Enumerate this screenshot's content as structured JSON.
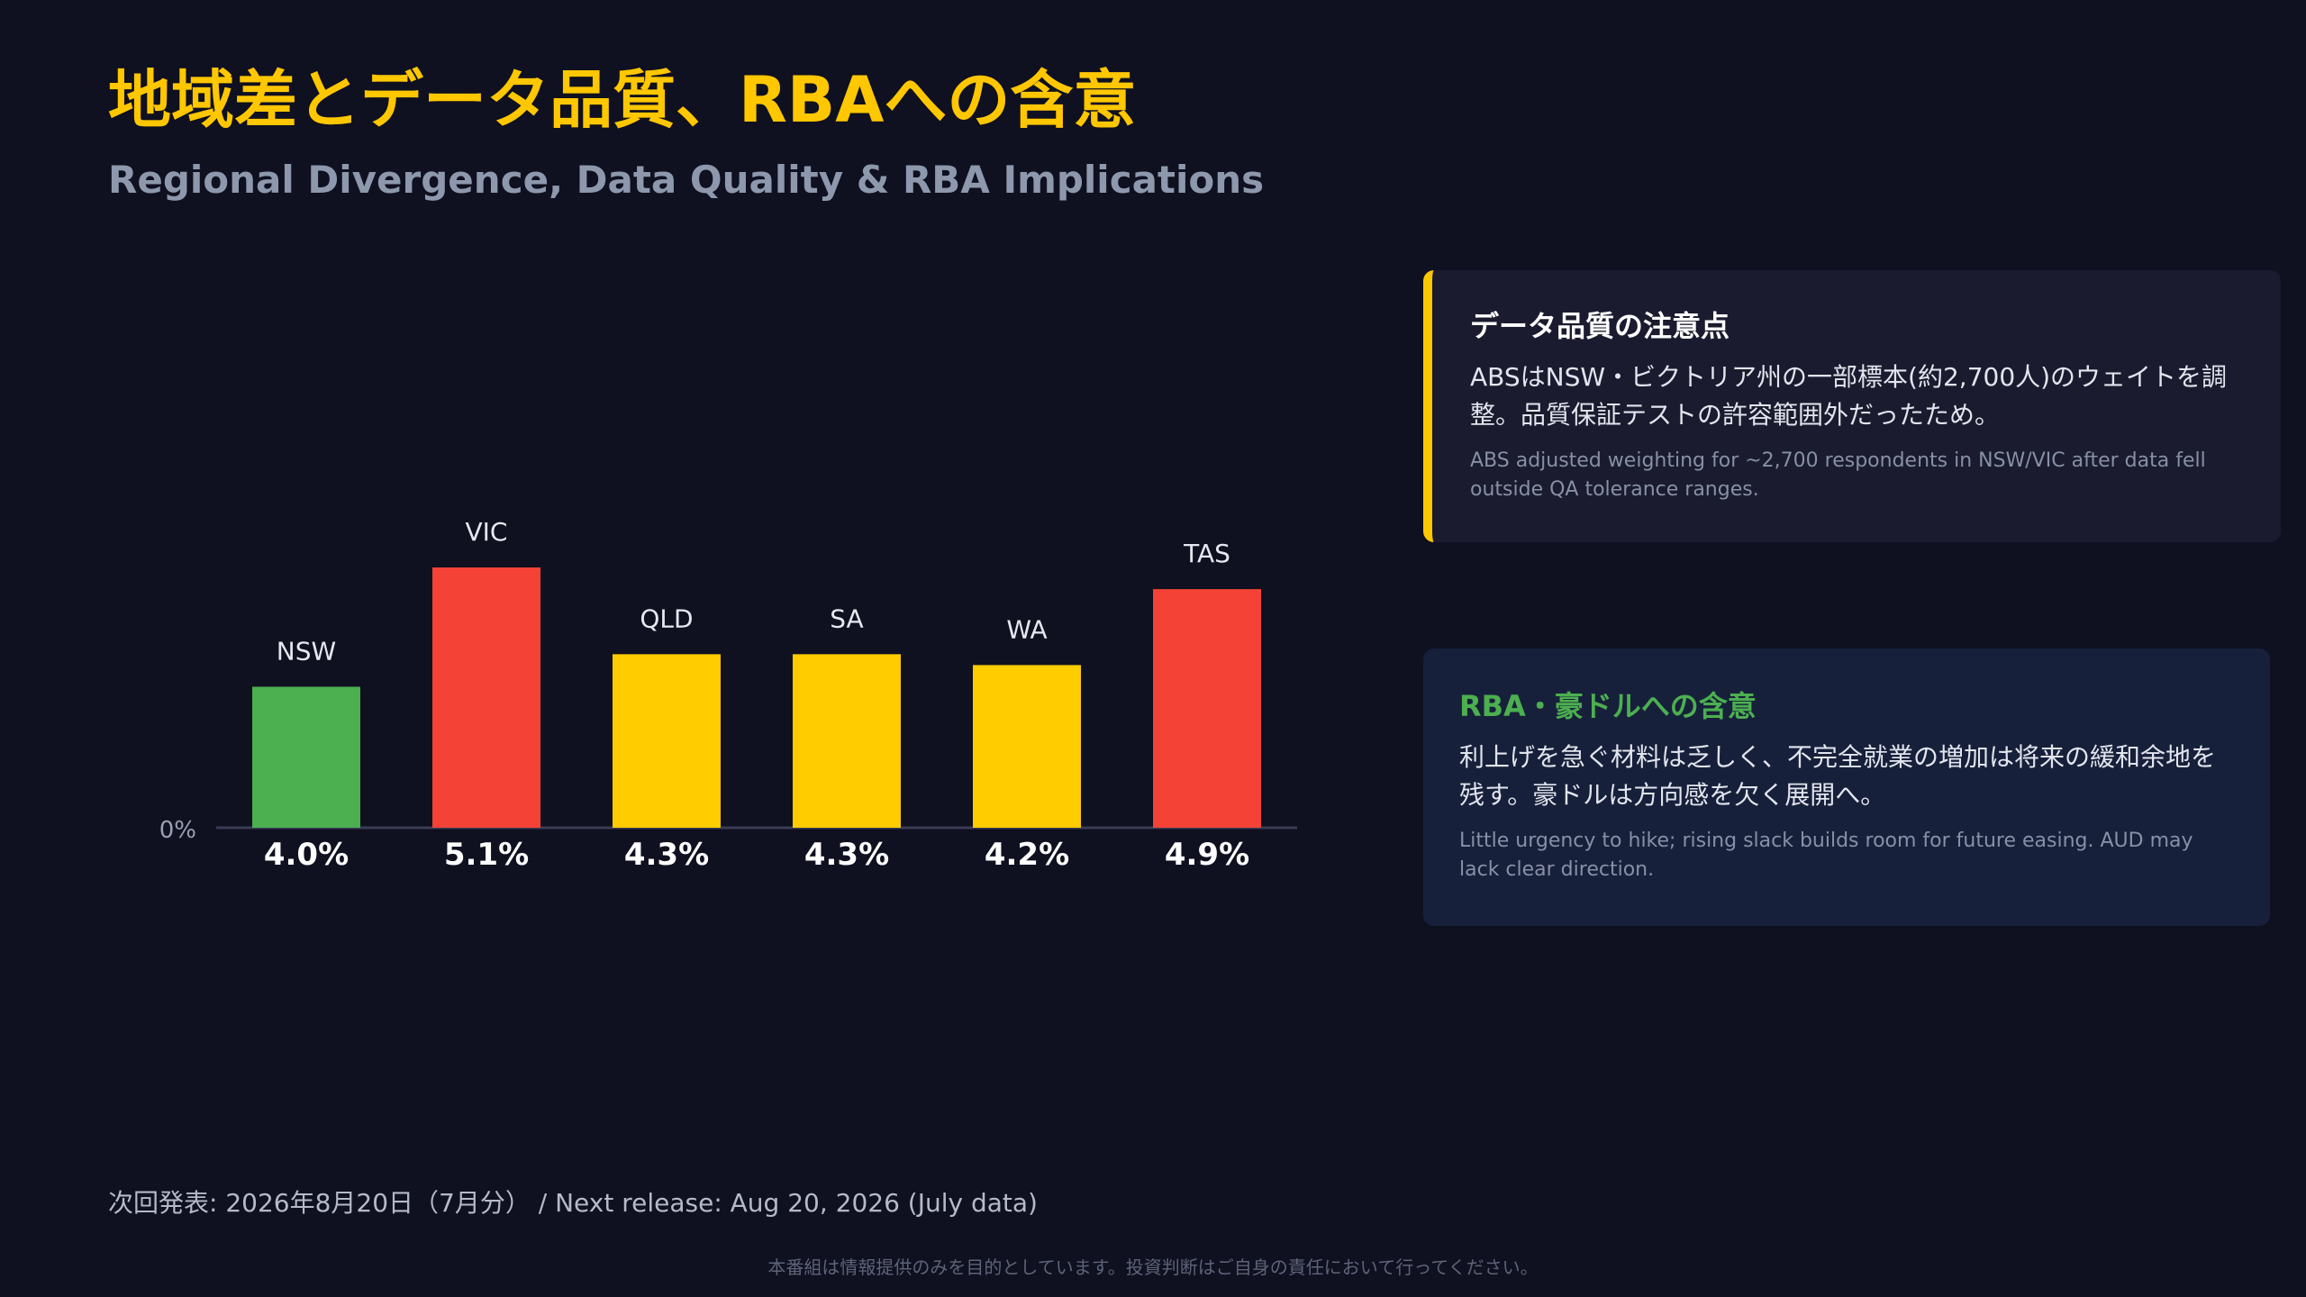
{
  "header": {
    "title": "地域差とデータ品質、RBAへの含意",
    "subtitle": "Regional Divergence, Data Quality & RBA Implications"
  },
  "colors": {
    "background": "#0f1020",
    "accent": "#ffc700",
    "below_national": "#4caf50",
    "above_national": "#f44336",
    "near_national": "#ffcc00"
  },
  "chart_data": {
    "type": "bar",
    "categories": [
      "NSW",
      "VIC",
      "QLD",
      "SA",
      "WA",
      "TAS"
    ],
    "values": [
      4.0,
      5.1,
      4.3,
      4.3,
      4.2,
      4.9
    ],
    "value_labels": [
      "4.0%",
      "5.1%",
      "4.3%",
      "4.3%",
      "4.2%",
      "4.9%"
    ],
    "bar_colors": [
      "#4caf50",
      "#f44336",
      "#ffcc00",
      "#ffcc00",
      "#ffcc00",
      "#f44336"
    ],
    "baseline_label": "0%",
    "title": "",
    "xlabel": "",
    "ylabel": "",
    "ylim": [
      0,
      5.5
    ],
    "grid": false,
    "legend": "none"
  },
  "cards": {
    "quality": {
      "title": "データ品質の注意点",
      "jp": "ABSはNSW・ビクトリア州の一部標本(約2,700人)のウェイトを調整。品質保証テストの許容範囲外だったため。",
      "en": "ABS adjusted weighting for ~2,700 respondents in NSW/VIC after data fell outside QA tolerance ranges."
    },
    "rba": {
      "title": "RBA・豪ドルへの含意",
      "jp": "利上げを急ぐ材料は乏しく、不完全就業の増加は将来の緩和余地を残す。豪ドルは方向感を欠く展開へ。",
      "en": "Little urgency to hike; rising slack builds room for future easing. AUD may lack clear direction."
    }
  },
  "footer": {
    "next_release": "次回発表: 2026年8月20日（7月分） / Next release: Aug 20, 2026 (July data)",
    "disclaimer": "本番組は情報提供のみを目的としています。投資判断はご自身の責任において行ってください。"
  }
}
